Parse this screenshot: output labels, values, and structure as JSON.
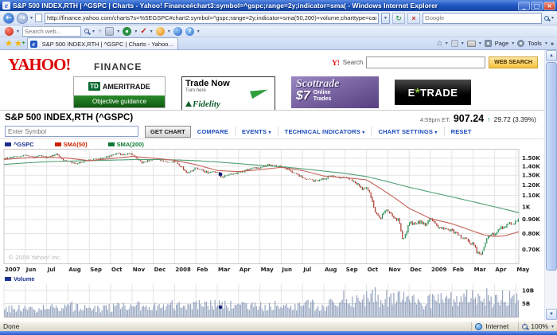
{
  "icons": {
    "caret": "▾",
    "back": "←",
    "forward": "→",
    "refresh": "↻",
    "stop": "×",
    "minimize": "_",
    "maximize": "□",
    "close": "×",
    "star": "★",
    "home": "⌂",
    "overflow": "»",
    "scroll_up": "▲",
    "scroll_down": "▼",
    "ie": "e",
    "check": "✓"
  },
  "window": {
    "title": "S&P 500 INDEX,RTH | ^GSPC | Charts - Yahoo! Finance#chart3:symbol=^gspc;range=2y;indicator=sma( - Windows Internet Explorer"
  },
  "browser": {
    "url": "http://finance.yahoo.com/charts?s=%5EGSPC#chart2:symbol=^gspc;range=2y;indicator=sma(50,200)+volume;charttype=candlestick;crosshair=on;ohlcvalues=0;logscale=on",
    "search_placeholder": "Google",
    "toolbar_search_placeholder": "Search web...",
    "tab_title": "S&P 500 INDEX,RTH | ^GSPC | Charts - Yahoo! Finan...",
    "page_menu": "Page",
    "tools_menu": "Tools"
  },
  "header": {
    "logo": "YAHOO!",
    "brand": "FINANCE",
    "search_mark": "Y!",
    "search_label": "Search",
    "web_search_button": "WEB SEARCH"
  },
  "ads": {
    "ameritrade": {
      "td": "TD",
      "name": "AMERITRADE",
      "tagline": "Objective guidance"
    },
    "fidelity": {
      "headline": "Trade Now",
      "sub": "Turn here",
      "brand": "Fidelity"
    },
    "scottrade": {
      "brand": "Scottrade",
      "price": "$7",
      "line1": "Online",
      "line2": "Trades"
    },
    "etrade": {
      "left": "E",
      "star": "*",
      "right": "TRADE"
    }
  },
  "quote": {
    "title": "S&P 500 INDEX,RTH (^GSPC)",
    "time": "4:59pm ET:",
    "price": "907.24",
    "arrow": "↑",
    "change": "29.72 (3.39%)",
    "up_color": "#0a8f2a"
  },
  "chart_toolbar": {
    "symbol_placeholder": "Enter Symbol",
    "get_chart": "GET CHART",
    "compare": "COMPARE",
    "events": "EVENTS",
    "technical_indicators": "TECHNICAL INDICATORS",
    "chart_settings": "CHART SETTINGS",
    "reset": "RESET"
  },
  "chart_data": {
    "type": "candlestick",
    "symbol": "^GSPC",
    "range": "2y",
    "log_scale": true,
    "legend": [
      {
        "label": "^GSPC",
        "color": "#1c2f8e"
      },
      {
        "label": "SMA(50)",
        "color": "#cc2200"
      },
      {
        "label": "SMA(200)",
        "color": "#0d7a38"
      }
    ],
    "watermark": "© 2009 Yahoo! Inc.",
    "x_labels": [
      "2007",
      "Jun",
      "Jul",
      "Aug",
      "Sep",
      "Oct",
      "Nov",
      "Dec",
      "2008",
      "Feb",
      "Mar",
      "Apr",
      "May",
      "Jun",
      "Jul",
      "Aug",
      "Sep",
      "Oct",
      "Nov",
      "Dec",
      "2009",
      "Feb",
      "Mar",
      "Apr",
      "May"
    ],
    "y_ticks": [
      {
        "v": 1500,
        "label": "1.50K"
      },
      {
        "v": 1400,
        "label": "1.40K"
      },
      {
        "v": 1300,
        "label": "1.30K"
      },
      {
        "v": 1200,
        "label": "1.20K"
      },
      {
        "v": 1100,
        "label": "1.10K"
      },
      {
        "v": 1000,
        "label": "1K"
      },
      {
        "v": 900,
        "label": "0.90K"
      },
      {
        "v": 800,
        "label": "0.80K"
      },
      {
        "v": 700,
        "label": "0.70K"
      }
    ],
    "ylim": [
      620,
      1620
    ],
    "months_total": 24.15,
    "bars": 360,
    "colors": {
      "up": "#1f8a4c",
      "down": "#a8392e",
      "sma50": "#c4625a",
      "sma200": "#4f9e74",
      "volume_bar": "#8495b5",
      "grid": "#e3e3e3",
      "frame": "#c8c8c8",
      "marker": "#151f77",
      "tick_text": "#222222",
      "watermark_text": "#b5b5b5"
    },
    "price_anchors": [
      [
        0,
        1493
      ],
      [
        0.5,
        1509
      ],
      [
        1,
        1536
      ],
      [
        1.4,
        1503
      ],
      [
        1.7,
        1534
      ],
      [
        2,
        1504
      ],
      [
        2.5,
        1553
      ],
      [
        2.8,
        1465
      ],
      [
        3,
        1458
      ],
      [
        3.3,
        1432
      ],
      [
        3.6,
        1447
      ],
      [
        3.8,
        1465
      ],
      [
        4,
        1474
      ],
      [
        4.5,
        1490
      ],
      [
        5,
        1527
      ],
      [
        5.3,
        1556
      ],
      [
        5.6,
        1540
      ],
      [
        5.8,
        1562
      ],
      [
        6,
        1546
      ],
      [
        6.3,
        1475
      ],
      [
        6.5,
        1440
      ],
      [
        6.8,
        1472
      ],
      [
        7,
        1481
      ],
      [
        7.3,
        1478
      ],
      [
        7.6,
        1446
      ],
      [
        8,
        1460
      ],
      [
        8.3,
        1395
      ],
      [
        8.6,
        1325
      ],
      [
        8.8,
        1353
      ],
      [
        9,
        1378
      ],
      [
        9.3,
        1348
      ],
      [
        9.6,
        1330
      ],
      [
        9.8,
        1336
      ],
      [
        10,
        1331
      ],
      [
        10.2,
        1276
      ],
      [
        10.5,
        1298
      ],
      [
        10.8,
        1322
      ],
      [
        11,
        1326
      ],
      [
        11.5,
        1368
      ],
      [
        12,
        1388
      ],
      [
        12.5,
        1424
      ],
      [
        13,
        1398
      ],
      [
        13.5,
        1342
      ],
      [
        14,
        1278
      ],
      [
        14.5,
        1242
      ],
      [
        15,
        1262
      ],
      [
        15.3,
        1290
      ],
      [
        15.6,
        1276
      ],
      [
        16,
        1282
      ],
      [
        16.3,
        1252
      ],
      [
        16.6,
        1212
      ],
      [
        16.8,
        1162
      ],
      [
        17,
        1160
      ],
      [
        17.2,
        1098
      ],
      [
        17.4,
        968
      ],
      [
        17.6,
        898
      ],
      [
        17.8,
        952
      ],
      [
        18,
        966
      ],
      [
        18.2,
        928
      ],
      [
        18.5,
        898
      ],
      [
        18.7,
        752
      ],
      [
        18.9,
        806
      ],
      [
        19,
        886
      ],
      [
        19.2,
        868
      ],
      [
        19.5,
        884
      ],
      [
        19.8,
        864
      ],
      [
        20,
        902
      ],
      [
        20.3,
        848
      ],
      [
        20.5,
        834
      ],
      [
        20.8,
        826
      ],
      [
        21,
        824
      ],
      [
        21.3,
        788
      ],
      [
        21.6,
        768
      ],
      [
        21.9,
        736
      ],
      [
        22,
        730
      ],
      [
        22.2,
        682
      ],
      [
        22.35,
        672
      ],
      [
        22.6,
        752
      ],
      [
        22.8,
        788
      ],
      [
        23,
        796
      ],
      [
        23.3,
        838
      ],
      [
        23.6,
        858
      ],
      [
        23.9,
        874
      ],
      [
        24.15,
        907
      ]
    ],
    "sma50_anchors": [
      [
        0,
        1482
      ],
      [
        1,
        1502
      ],
      [
        2,
        1512
      ],
      [
        3,
        1498
      ],
      [
        4,
        1468
      ],
      [
        5,
        1492
      ],
      [
        6,
        1521
      ],
      [
        7,
        1499
      ],
      [
        8,
        1472
      ],
      [
        9,
        1420
      ],
      [
        10,
        1352
      ],
      [
        11,
        1340
      ],
      [
        12,
        1362
      ],
      [
        13,
        1388
      ],
      [
        14,
        1352
      ],
      [
        15,
        1292
      ],
      [
        16,
        1274
      ],
      [
        17,
        1252
      ],
      [
        18,
        1118
      ],
      [
        19,
        986
      ],
      [
        20,
        906
      ],
      [
        21,
        868
      ],
      [
        22,
        816
      ],
      [
        22.5,
        792
      ],
      [
        23,
        780
      ],
      [
        23.5,
        786
      ],
      [
        24.15,
        812
      ]
    ],
    "sma200_anchors": [
      [
        0,
        1422
      ],
      [
        1,
        1440
      ],
      [
        2,
        1454
      ],
      [
        3,
        1462
      ],
      [
        4,
        1468
      ],
      [
        5,
        1474
      ],
      [
        6,
        1480
      ],
      [
        7,
        1482
      ],
      [
        8,
        1478
      ],
      [
        9,
        1468
      ],
      [
        10,
        1452
      ],
      [
        11,
        1432
      ],
      [
        12,
        1412
      ],
      [
        13,
        1396
      ],
      [
        14,
        1372
      ],
      [
        15,
        1346
      ],
      [
        16,
        1320
      ],
      [
        17,
        1286
      ],
      [
        18,
        1232
      ],
      [
        19,
        1176
      ],
      [
        20,
        1130
      ],
      [
        21,
        1086
      ],
      [
        22,
        1042
      ],
      [
        23,
        1000
      ],
      [
        24.15,
        952
      ]
    ],
    "volume": {
      "label": "Volume",
      "color": "#1c2f8e",
      "ylim": [
        0,
        11.5
      ],
      "ticks": [
        {
          "v": 10,
          "label": "10B"
        },
        {
          "v": 5,
          "label": "5B"
        }
      ],
      "anchors": [
        [
          0,
          2.9
        ],
        [
          1,
          3.0
        ],
        [
          2,
          3.3
        ],
        [
          2.8,
          4.1
        ],
        [
          3,
          4.0
        ],
        [
          4,
          3.1
        ],
        [
          5,
          3.3
        ],
        [
          6,
          3.9
        ],
        [
          7,
          3.6
        ],
        [
          8,
          4.3
        ],
        [
          8.6,
          4.6
        ],
        [
          9,
          4.1
        ],
        [
          10,
          4.3
        ],
        [
          11,
          3.8
        ],
        [
          12,
          3.6
        ],
        [
          13,
          4.1
        ],
        [
          14,
          4.5
        ],
        [
          15,
          4.2
        ],
        [
          16,
          5.0
        ],
        [
          16.8,
          6.2
        ],
        [
          17.4,
          7.4
        ],
        [
          18,
          6.8
        ],
        [
          18.7,
          6.2
        ],
        [
          19,
          5.6
        ],
        [
          19.5,
          5.2
        ],
        [
          20,
          5.6
        ],
        [
          21,
          6.1
        ],
        [
          22,
          7.0
        ],
        [
          22.5,
          7.2
        ],
        [
          23,
          6.6
        ],
        [
          23.6,
          6.9
        ],
        [
          24.15,
          6.4
        ]
      ]
    },
    "markers": {
      "price": [
        10.15,
        1310
      ],
      "volume": [
        10.15,
        3.6
      ]
    }
  },
  "statusbar": {
    "status": "Done",
    "zone": "Internet",
    "zoom": "100%"
  }
}
